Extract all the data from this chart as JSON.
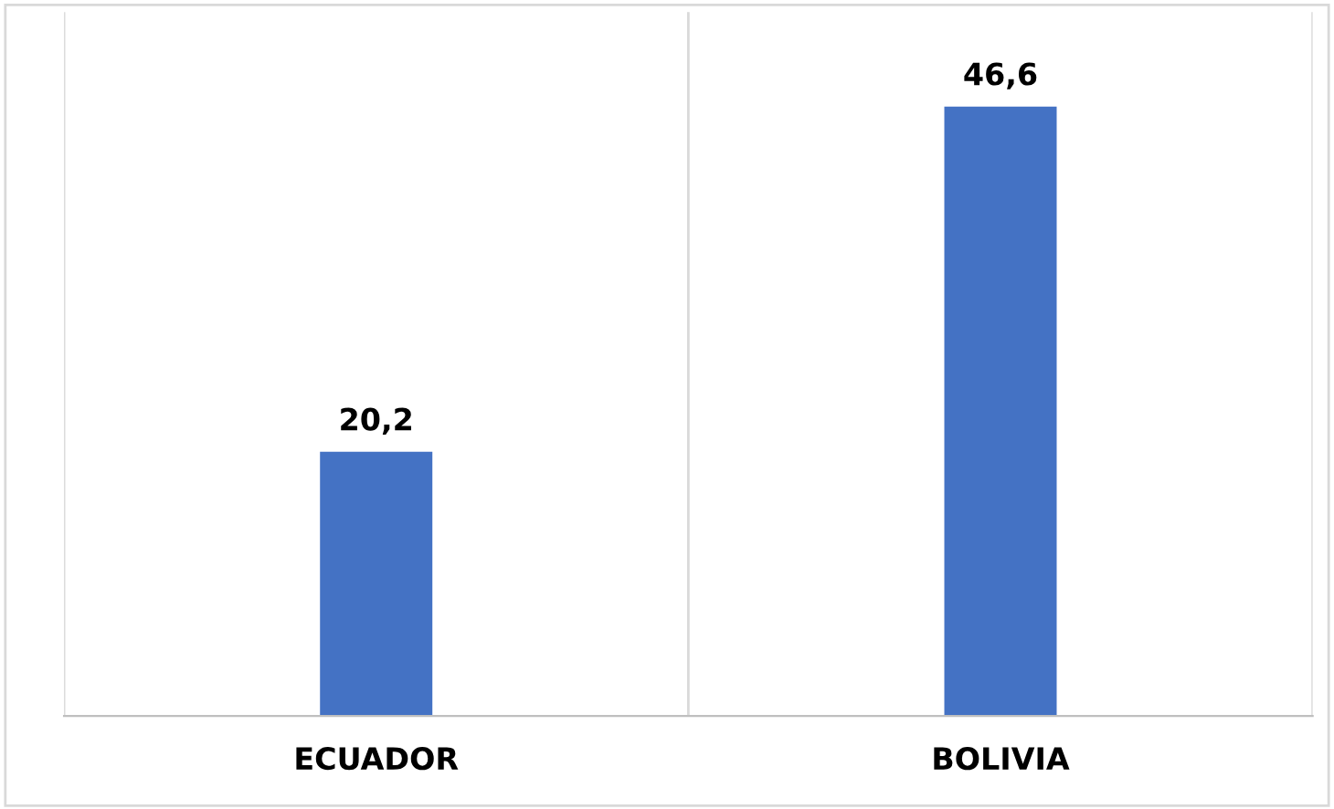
{
  "chart_data": {
    "type": "bar",
    "categories": [
      "ECUADOR",
      "BOLIVIA"
    ],
    "values": [
      20.2,
      46.6
    ],
    "value_labels": [
      "20,2",
      "46,6"
    ],
    "color": "#4472c4",
    "grid": "x"
  }
}
